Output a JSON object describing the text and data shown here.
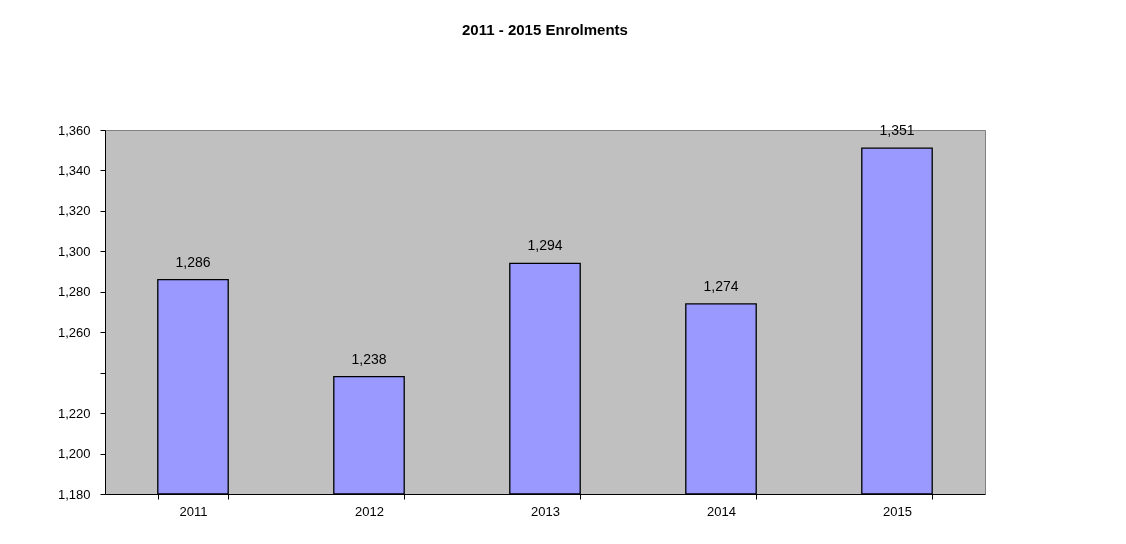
{
  "chart_data": {
    "type": "bar",
    "title": "2011 - 2015 Enrolments",
    "categories": [
      "2011",
      "2012",
      "2013",
      "2014",
      "2015"
    ],
    "values": [
      1286,
      1238,
      1294,
      1274,
      1351
    ],
    "color": "#9999ff",
    "value_labels": [
      "1,286",
      "1,238",
      "1,294",
      "1,274",
      "1,351"
    ],
    "ylim": [
      1180,
      1360
    ],
    "yticks": [
      {
        "value": 1180,
        "label": "1,180"
      },
      {
        "value": 1200,
        "label": "1,200"
      },
      {
        "value": 1220,
        "label": "1,220"
      },
      {
        "value": 1240,
        "label": null
      },
      {
        "value": 1260,
        "label": "1,260"
      },
      {
        "value": 1280,
        "label": "1,280"
      },
      {
        "value": 1300,
        "label": "1,300"
      },
      {
        "value": 1320,
        "label": "1,320"
      },
      {
        "value": 1340,
        "label": "1,340"
      },
      {
        "value": 1360,
        "label": "1,360"
      }
    ],
    "grid": false
  }
}
